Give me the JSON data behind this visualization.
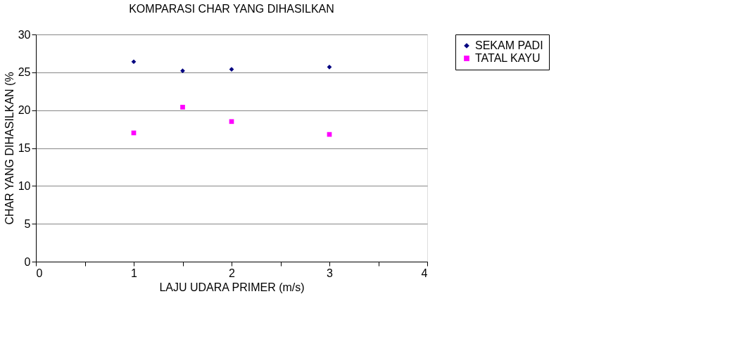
{
  "chart_data": {
    "type": "scatter",
    "title": "KOMPARASI CHAR YANG DIHASILKAN",
    "xlabel": "LAJU UDARA PRIMER (m/s)",
    "ylabel": "CHAR YANG DIHASILKAN (%",
    "series": [
      {
        "name": "SEKAM PADI",
        "color": "#000080",
        "marker": "diamond",
        "x": [
          1,
          1.5,
          2,
          3
        ],
        "values": [
          26.4,
          25.2,
          25.4,
          25.7
        ]
      },
      {
        "name": "TATAL KAYU",
        "color": "#ff00ff",
        "marker": "square",
        "x": [
          1,
          1.5,
          2,
          3
        ],
        "values": [
          17.0,
          20.4,
          18.5,
          16.8
        ]
      }
    ],
    "xlim": [
      0,
      4
    ],
    "ylim": [
      0,
      30
    ],
    "xticks": [
      0,
      {
        "value": 0.5,
        "label": null
      },
      1,
      {
        "value": 1.5,
        "label": null
      },
      2,
      {
        "value": 2.5,
        "label": null
      },
      3,
      {
        "value": 3.5,
        "label": null
      },
      4
    ],
    "yticks": [
      0,
      5,
      10,
      15,
      20,
      25,
      30
    ],
    "grid": "y",
    "legend": "right"
  }
}
